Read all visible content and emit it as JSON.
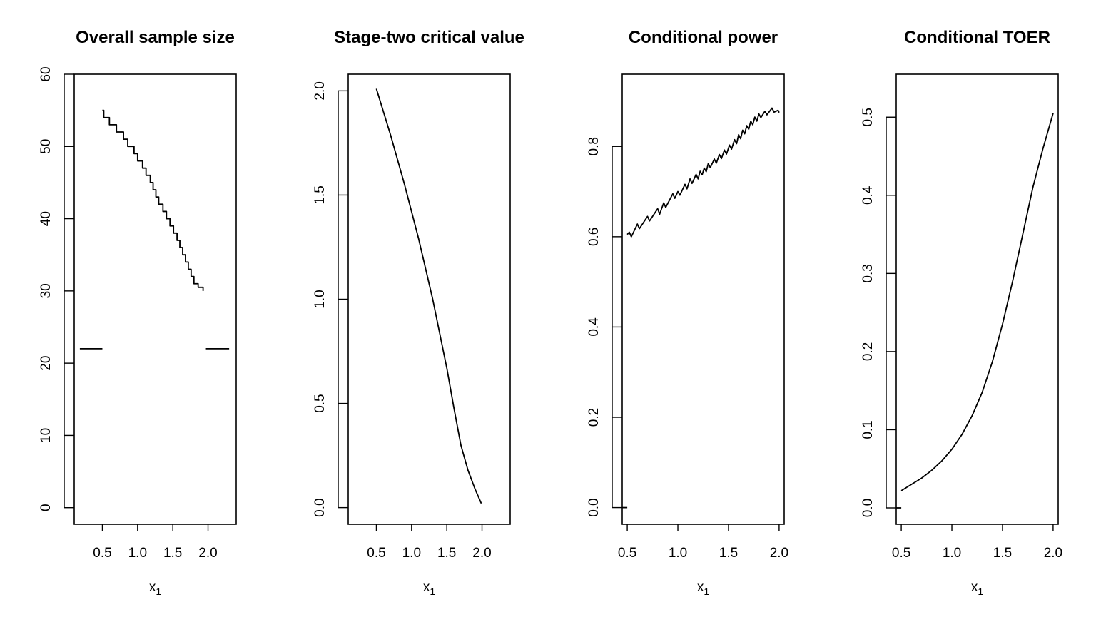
{
  "chart_data": [
    {
      "type": "line",
      "title": "Overall sample size",
      "xlabel": "x",
      "xlabel_sub": "1",
      "ylabel": "",
      "xlim": [
        0.1,
        2.4
      ],
      "ylim": [
        -2.3,
        60
      ],
      "xticks": [
        0.5,
        1.0,
        1.5,
        2.0
      ],
      "xtick_labels": [
        "0.5",
        "1.0",
        "1.5",
        "2.0"
      ],
      "yticks": [
        0,
        10,
        20,
        30,
        40,
        50,
        60
      ],
      "ytick_labels": [
        "0",
        "10",
        "20",
        "30",
        "40",
        "50",
        "60"
      ],
      "grid": false,
      "legend": "none",
      "series": [
        {
          "points": [
            [
              0.18,
              22
            ],
            [
              0.5,
              22
            ]
          ]
        },
        {
          "points": [
            [
              0.5,
              55
            ],
            [
              0.52,
              55
            ],
            [
              0.52,
              54
            ],
            [
              0.6,
              54
            ],
            [
              0.6,
              53
            ],
            [
              0.7,
              53
            ],
            [
              0.7,
              52
            ],
            [
              0.8,
              52
            ],
            [
              0.8,
              51
            ],
            [
              0.86,
              51
            ],
            [
              0.86,
              50
            ],
            [
              0.95,
              50
            ],
            [
              0.95,
              49
            ],
            [
              1.0,
              49
            ],
            [
              1.0,
              48
            ],
            [
              1.07,
              48
            ],
            [
              1.07,
              47
            ],
            [
              1.12,
              47
            ],
            [
              1.12,
              46
            ],
            [
              1.18,
              46
            ],
            [
              1.18,
              45
            ],
            [
              1.22,
              45
            ],
            [
              1.22,
              44
            ],
            [
              1.26,
              44
            ],
            [
              1.26,
              43
            ],
            [
              1.3,
              43
            ],
            [
              1.3,
              42
            ],
            [
              1.36,
              42
            ],
            [
              1.36,
              41
            ],
            [
              1.41,
              41
            ],
            [
              1.41,
              40
            ],
            [
              1.46,
              40
            ],
            [
              1.46,
              39
            ],
            [
              1.51,
              39
            ],
            [
              1.51,
              38
            ],
            [
              1.56,
              38
            ],
            [
              1.56,
              37
            ],
            [
              1.6,
              37
            ],
            [
              1.6,
              36
            ],
            [
              1.64,
              36
            ],
            [
              1.64,
              35
            ],
            [
              1.68,
              35
            ],
            [
              1.68,
              34
            ],
            [
              1.72,
              34
            ],
            [
              1.72,
              33
            ],
            [
              1.76,
              33
            ],
            [
              1.76,
              32
            ],
            [
              1.8,
              32
            ],
            [
              1.8,
              31
            ],
            [
              1.86,
              31
            ],
            [
              1.86,
              30.5
            ],
            [
              1.93,
              30.5
            ],
            [
              1.93,
              30
            ]
          ]
        },
        {
          "points": [
            [
              1.97,
              22
            ],
            [
              2.3,
              22
            ]
          ]
        }
      ]
    },
    {
      "type": "line",
      "title": "Stage-two critical value",
      "xlabel": "x",
      "xlabel_sub": "1",
      "ylabel": "",
      "xlim": [
        0.1,
        2.4
      ],
      "ylim": [
        -0.08,
        2.08
      ],
      "xticks": [
        0.5,
        1.0,
        1.5,
        2.0
      ],
      "xtick_labels": [
        "0.5",
        "1.0",
        "1.5",
        "2.0"
      ],
      "yticks": [
        0.0,
        0.5,
        1.0,
        1.5,
        2.0
      ],
      "ytick_labels": [
        "0.0",
        "0.5",
        "1.0",
        "1.5",
        "2.0"
      ],
      "grid": false,
      "legend": "none",
      "series": [
        {
          "points": [
            [
              0.5,
              2.01
            ],
            [
              0.7,
              1.79
            ],
            [
              0.9,
              1.55
            ],
            [
              1.1,
              1.29
            ],
            [
              1.3,
              1.0
            ],
            [
              1.5,
              0.67
            ],
            [
              1.6,
              0.48
            ],
            [
              1.7,
              0.3
            ],
            [
              1.8,
              0.18
            ],
            [
              1.9,
              0.09
            ],
            [
              1.99,
              0.02
            ]
          ]
        }
      ]
    },
    {
      "type": "line",
      "title": "Conditional power",
      "xlabel": "x",
      "xlabel_sub": "1",
      "ylabel": "",
      "xlim": [
        0.45,
        2.05
      ],
      "ylim": [
        -0.037,
        0.96
      ],
      "xticks": [
        0.5,
        1.0,
        1.5,
        2.0
      ],
      "xtick_labels": [
        "0.5",
        "1.0",
        "1.5",
        "2.0"
      ],
      "yticks": [
        0.0,
        0.2,
        0.4,
        0.6,
        0.8
      ],
      "ytick_labels": [
        "0.0",
        "0.2",
        "0.4",
        "0.6",
        "0.8"
      ],
      "grid": false,
      "legend": "none",
      "series": [
        {
          "points": [
            [
              0.45,
              0.0
            ],
            [
              0.5,
              0.0
            ]
          ]
        },
        {
          "points": [
            [
              0.5,
              0.605
            ],
            [
              0.52,
              0.61
            ],
            [
              0.54,
              0.6
            ],
            [
              0.6,
              0.628
            ],
            [
              0.62,
              0.618
            ],
            [
              0.7,
              0.645
            ],
            [
              0.72,
              0.635
            ],
            [
              0.8,
              0.662
            ],
            [
              0.82,
              0.65
            ],
            [
              0.86,
              0.675
            ],
            [
              0.88,
              0.665
            ],
            [
              0.95,
              0.695
            ],
            [
              0.97,
              0.685
            ],
            [
              1.0,
              0.7
            ],
            [
              1.02,
              0.692
            ],
            [
              1.07,
              0.716
            ],
            [
              1.09,
              0.706
            ],
            [
              1.12,
              0.728
            ],
            [
              1.14,
              0.718
            ],
            [
              1.18,
              0.738
            ],
            [
              1.2,
              0.728
            ],
            [
              1.22,
              0.745
            ],
            [
              1.24,
              0.737
            ],
            [
              1.26,
              0.752
            ],
            [
              1.28,
              0.744
            ],
            [
              1.3,
              0.762
            ],
            [
              1.32,
              0.753
            ],
            [
              1.36,
              0.772
            ],
            [
              1.38,
              0.763
            ],
            [
              1.41,
              0.782
            ],
            [
              1.43,
              0.773
            ],
            [
              1.46,
              0.792
            ],
            [
              1.48,
              0.783
            ],
            [
              1.51,
              0.803
            ],
            [
              1.53,
              0.794
            ],
            [
              1.56,
              0.815
            ],
            [
              1.58,
              0.806
            ],
            [
              1.6,
              0.826
            ],
            [
              1.62,
              0.817
            ],
            [
              1.64,
              0.836
            ],
            [
              1.66,
              0.828
            ],
            [
              1.68,
              0.846
            ],
            [
              1.7,
              0.838
            ],
            [
              1.72,
              0.856
            ],
            [
              1.74,
              0.848
            ],
            [
              1.76,
              0.865
            ],
            [
              1.78,
              0.856
            ],
            [
              1.8,
              0.872
            ],
            [
              1.82,
              0.864
            ],
            [
              1.86,
              0.878
            ],
            [
              1.88,
              0.87
            ],
            [
              1.93,
              0.885
            ],
            [
              1.95,
              0.876
            ],
            [
              1.99,
              0.88
            ],
            [
              2.0,
              0.875
            ]
          ]
        }
      ]
    },
    {
      "type": "line",
      "title": "Conditional TOER",
      "xlabel": "x",
      "xlabel_sub": "1",
      "ylabel": "",
      "xlim": [
        0.45,
        2.05
      ],
      "ylim": [
        -0.021,
        0.555
      ],
      "xticks": [
        0.5,
        1.0,
        1.5,
        2.0
      ],
      "xtick_labels": [
        "0.5",
        "1.0",
        "1.5",
        "2.0"
      ],
      "yticks": [
        0.0,
        0.1,
        0.2,
        0.3,
        0.4,
        0.5
      ],
      "ytick_labels": [
        "0.0",
        "0.1",
        "0.2",
        "0.3",
        "0.4",
        "0.5"
      ],
      "grid": false,
      "legend": "none",
      "series": [
        {
          "points": [
            [
              0.45,
              0.0
            ],
            [
              0.5,
              0.0
            ]
          ]
        },
        {
          "points": [
            [
              0.5,
              0.022
            ],
            [
              0.6,
              0.03
            ],
            [
              0.7,
              0.038
            ],
            [
              0.8,
              0.048
            ],
            [
              0.9,
              0.06
            ],
            [
              1.0,
              0.075
            ],
            [
              1.1,
              0.094
            ],
            [
              1.2,
              0.118
            ],
            [
              1.3,
              0.148
            ],
            [
              1.4,
              0.187
            ],
            [
              1.5,
              0.235
            ],
            [
              1.6,
              0.29
            ],
            [
              1.7,
              0.35
            ],
            [
              1.8,
              0.41
            ],
            [
              1.9,
              0.46
            ],
            [
              2.0,
              0.505
            ]
          ]
        }
      ]
    }
  ]
}
